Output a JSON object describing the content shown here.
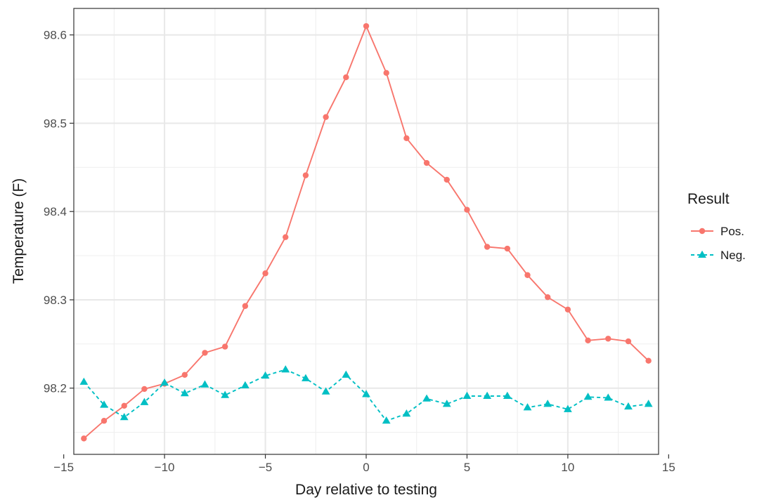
{
  "chart_data": {
    "type": "line",
    "xlabel": "Day relative to testing",
    "ylabel": "Temperature (F)",
    "xlim": [
      -14.5,
      14.5
    ],
    "ylim": [
      98.125,
      98.63
    ],
    "x_ticks": [
      -15,
      -10,
      -5,
      0,
      5,
      10,
      15
    ],
    "y_ticks": [
      98.2,
      98.3,
      98.4,
      98.5,
      98.6
    ],
    "x_tick_labels": [
      "−15",
      "−10",
      "−5",
      "0",
      "5",
      "10",
      "15"
    ],
    "y_tick_labels": [
      "98.2",
      "98.3",
      "98.4",
      "98.5",
      "98.6"
    ],
    "grid": true,
    "legend": {
      "title": "Result",
      "position": "right"
    },
    "x": [
      -14,
      -13,
      -12,
      -11,
      -10,
      -9,
      -8,
      -7,
      -6,
      -5,
      -4,
      -3,
      -2,
      -1,
      0,
      1,
      2,
      3,
      4,
      5,
      6,
      7,
      8,
      9,
      10,
      11,
      12,
      13,
      14
    ],
    "series": [
      {
        "name": "Pos.",
        "color": "#F8766D",
        "marker": "circle",
        "dash": "solid",
        "values": [
          98.143,
          98.163,
          98.18,
          98.199,
          98.205,
          98.215,
          98.24,
          98.247,
          98.293,
          98.33,
          98.371,
          98.441,
          98.507,
          98.552,
          98.61,
          98.557,
          98.483,
          98.455,
          98.436,
          98.402,
          98.36,
          98.358,
          98.328,
          98.303,
          98.289,
          98.254,
          98.256,
          98.253,
          98.231
        ]
      },
      {
        "name": "Neg.",
        "color": "#00BFC4",
        "marker": "triangle",
        "dash": "dashed",
        "values": [
          98.207,
          98.181,
          98.167,
          98.184,
          98.206,
          98.194,
          98.204,
          98.192,
          98.203,
          98.214,
          98.221,
          98.211,
          98.196,
          98.215,
          98.193,
          98.163,
          98.171,
          98.188,
          98.182,
          98.191,
          98.191,
          98.191,
          98.178,
          98.182,
          98.176,
          98.19,
          98.189,
          98.179,
          98.182
        ]
      }
    ]
  }
}
